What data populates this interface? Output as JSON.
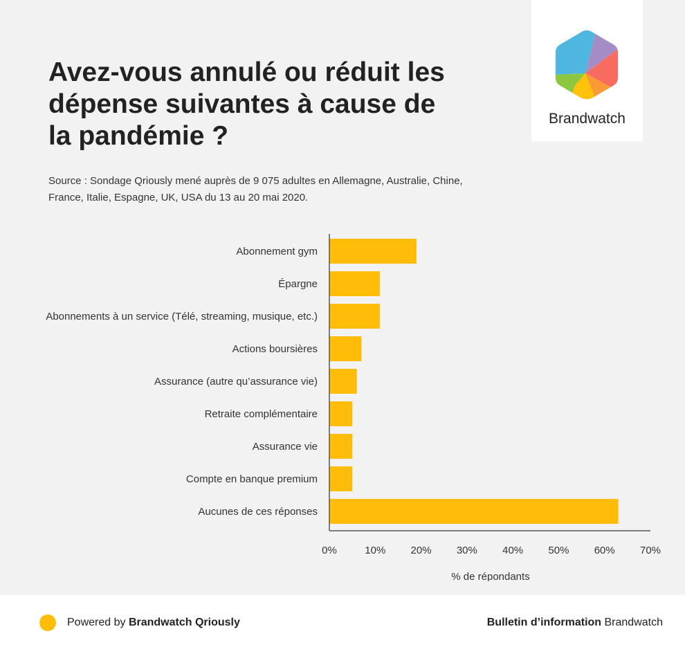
{
  "header": {
    "title": "Avez-vous annulé ou réduit les dépense suivantes à cause de la pandémie ?",
    "source": "Source : Sondage Qriously mené auprès de 9 075 adultes en Allemagne, Australie, Chine, France, Italie, Espagne, UK, USA du 13 au 20 mai 2020."
  },
  "logo": {
    "text": "Brandwatch",
    "colors": [
      "#4fb6e0",
      "#a48dc4",
      "#f76c5e",
      "#f89a35",
      "#ffc30b",
      "#8dc63f"
    ]
  },
  "chart_data": {
    "type": "bar",
    "orientation": "horizontal",
    "categories": [
      "Abonnement gym",
      "Épargne",
      "Abonnements à un service (Télé, streaming, musique, etc.)",
      "Actions boursières",
      "Assurance (autre qu’assurance vie)",
      "Retraite complémentaire",
      "Assurance vie",
      "Compte en banque premium",
      "Aucunes de ces réponses"
    ],
    "values": [
      19,
      11,
      11,
      7,
      6,
      5,
      5,
      5,
      63
    ],
    "xlim": [
      0,
      70
    ],
    "xticks": [
      0,
      10,
      20,
      30,
      40,
      50,
      60,
      70
    ],
    "tick_suffix": "%",
    "xlabel": "% de répondants",
    "ylabel": "",
    "bar_color": "#ffbd0a",
    "grid": false
  },
  "footer": {
    "powered_prefix": "Powered by ",
    "powered_brand": "Brandwatch Qriously",
    "bulletin_bold": "Bulletin d’information",
    "bulletin_rest": " Brandwatch",
    "dot_color": "#ffbd0a"
  }
}
